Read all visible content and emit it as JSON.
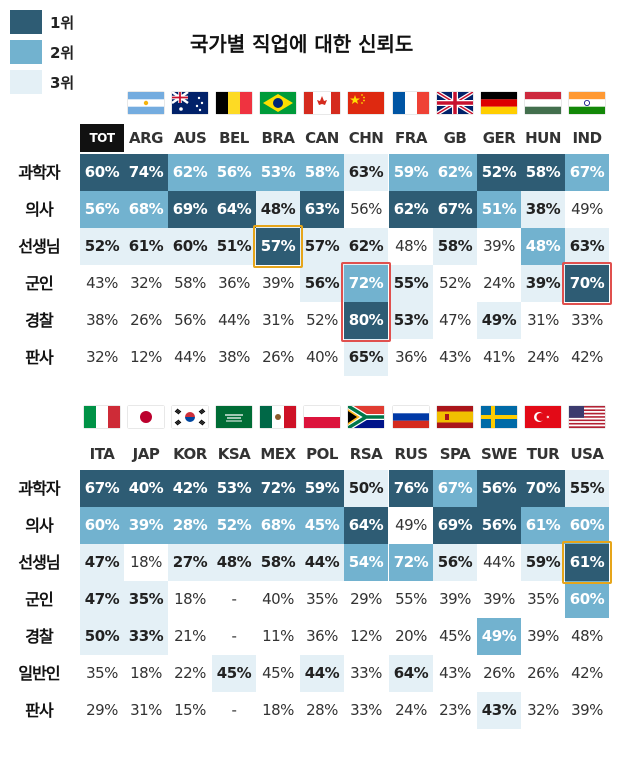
{
  "title": "국가별 직업에 대한 신뢰도",
  "legend": [
    {
      "label": "1위",
      "color": "#2e5c74"
    },
    {
      "label": "2위",
      "color": "#72b2cf"
    },
    {
      "label": "3위",
      "color": "#e4f0f6"
    }
  ],
  "chart_data": [
    {
      "type": "table",
      "columns": [
        "TOT",
        "ARG",
        "AUS",
        "BEL",
        "BRA",
        "CAN",
        "CHN",
        "FRA",
        "GB",
        "GER",
        "HUN",
        "IND"
      ],
      "rows": [
        {
          "label": "과학자",
          "values": [
            "60%",
            "74%",
            "62%",
            "56%",
            "53%",
            "58%",
            "63%",
            "59%",
            "62%",
            "52%",
            "58%",
            "67%"
          ],
          "ranks": [
            1,
            1,
            2,
            2,
            2,
            2,
            3,
            2,
            2,
            1,
            1,
            2
          ]
        },
        {
          "label": "의사",
          "values": [
            "56%",
            "68%",
            "69%",
            "64%",
            "48%",
            "63%",
            "56%",
            "62%",
            "67%",
            "51%",
            "38%",
            "49%"
          ],
          "ranks": [
            2,
            2,
            1,
            1,
            3,
            1,
            0,
            1,
            1,
            2,
            3,
            0
          ]
        },
        {
          "label": "선생님",
          "values": [
            "52%",
            "61%",
            "60%",
            "51%",
            "57%",
            "57%",
            "62%",
            "48%",
            "58%",
            "39%",
            "48%",
            "63%"
          ],
          "ranks": [
            3,
            3,
            3,
            3,
            1,
            3,
            3,
            0,
            3,
            0,
            2,
            3
          ]
        },
        {
          "label": "군인",
          "values": [
            "43%",
            "32%",
            "58%",
            "36%",
            "39%",
            "56%",
            "72%",
            "55%",
            "52%",
            "24%",
            "39%",
            "70%"
          ],
          "ranks": [
            0,
            0,
            0,
            0,
            0,
            3,
            2,
            3,
            0,
            0,
            3,
            1
          ]
        },
        {
          "label": "경찰",
          "values": [
            "38%",
            "26%",
            "56%",
            "44%",
            "31%",
            "52%",
            "80%",
            "53%",
            "47%",
            "49%",
            "31%",
            "33%"
          ],
          "ranks": [
            0,
            0,
            0,
            0,
            0,
            0,
            1,
            3,
            0,
            3,
            0,
            0
          ]
        },
        {
          "label": "판사",
          "values": [
            "32%",
            "12%",
            "44%",
            "38%",
            "26%",
            "40%",
            "65%",
            "36%",
            "43%",
            "41%",
            "24%",
            "42%"
          ],
          "ranks": [
            0,
            0,
            0,
            0,
            0,
            0,
            3,
            0,
            0,
            0,
            0,
            0
          ]
        }
      ]
    },
    {
      "type": "table",
      "columns": [
        "ITA",
        "JAP",
        "KOR",
        "KSA",
        "MEX",
        "POL",
        "RSA",
        "RUS",
        "SPA",
        "SWE",
        "TUR",
        "USA"
      ],
      "rows": [
        {
          "label": "과학자",
          "values": [
            "67%",
            "40%",
            "42%",
            "53%",
            "72%",
            "59%",
            "50%",
            "76%",
            "67%",
            "56%",
            "70%",
            "55%"
          ],
          "ranks": [
            1,
            1,
            1,
            1,
            1,
            1,
            3,
            1,
            2,
            1,
            1,
            3
          ]
        },
        {
          "label": "의사",
          "values": [
            "60%",
            "39%",
            "28%",
            "52%",
            "68%",
            "45%",
            "64%",
            "49%",
            "69%",
            "56%",
            "61%",
            "60%"
          ],
          "ranks": [
            2,
            2,
            2,
            2,
            2,
            2,
            1,
            0,
            1,
            1,
            2,
            2
          ]
        },
        {
          "label": "선생님",
          "values": [
            "47%",
            "18%",
            "27%",
            "48%",
            "58%",
            "44%",
            "54%",
            "72%",
            "56%",
            "44%",
            "59%",
            "61%"
          ],
          "ranks": [
            3,
            0,
            3,
            3,
            3,
            3,
            2,
            2,
            3,
            0,
            3,
            1
          ]
        },
        {
          "label": "군인",
          "values": [
            "47%",
            "35%",
            "18%",
            "-",
            "40%",
            "35%",
            "29%",
            "55%",
            "39%",
            "39%",
            "35%",
            "60%"
          ],
          "ranks": [
            3,
            3,
            0,
            0,
            0,
            0,
            0,
            0,
            0,
            0,
            0,
            2
          ]
        },
        {
          "label": "경찰",
          "values": [
            "50%",
            "33%",
            "21%",
            "-",
            "11%",
            "36%",
            "12%",
            "20%",
            "45%",
            "49%",
            "39%",
            "48%"
          ],
          "ranks": [
            3,
            3,
            0,
            0,
            0,
            0,
            0,
            0,
            0,
            2,
            0,
            0
          ]
        },
        {
          "label": "일반인",
          "values": [
            "35%",
            "18%",
            "22%",
            "45%",
            "45%",
            "44%",
            "33%",
            "64%",
            "43%",
            "26%",
            "26%",
            "42%"
          ],
          "ranks": [
            0,
            0,
            0,
            3,
            0,
            3,
            0,
            3,
            0,
            0,
            0,
            0
          ]
        },
        {
          "label": "판사",
          "values": [
            "29%",
            "31%",
            "15%",
            "-",
            "18%",
            "28%",
            "33%",
            "24%",
            "23%",
            "43%",
            "32%",
            "39%"
          ],
          "ranks": [
            0,
            0,
            0,
            0,
            0,
            0,
            0,
            0,
            0,
            3,
            0,
            0
          ]
        }
      ]
    }
  ],
  "highlights": [
    {
      "table": 0,
      "row": 2,
      "col": 4,
      "color": "gold"
    },
    {
      "table": 0,
      "row": 3,
      "col": 6,
      "color": "red",
      "rowspan": 2
    },
    {
      "table": 0,
      "row": 3,
      "col": 11,
      "color": "red"
    },
    {
      "table": 1,
      "row": 2,
      "col": 11,
      "color": "gold"
    }
  ],
  "flags_top": [
    "argentina-flag",
    "australia-flag",
    "belgium-flag",
    "brazil-flag",
    "canada-flag",
    "china-flag",
    "france-flag",
    "uk-flag",
    "germany-flag",
    "hungary-flag",
    "india-flag"
  ],
  "flags_bottom": [
    "italy-flag",
    "japan-flag",
    "korea-flag",
    "saudi-flag",
    "mexico-flag",
    "poland-flag",
    "south-africa-flag",
    "russia-flag",
    "spain-flag",
    "sweden-flag",
    "turkey-flag",
    "usa-flag"
  ]
}
